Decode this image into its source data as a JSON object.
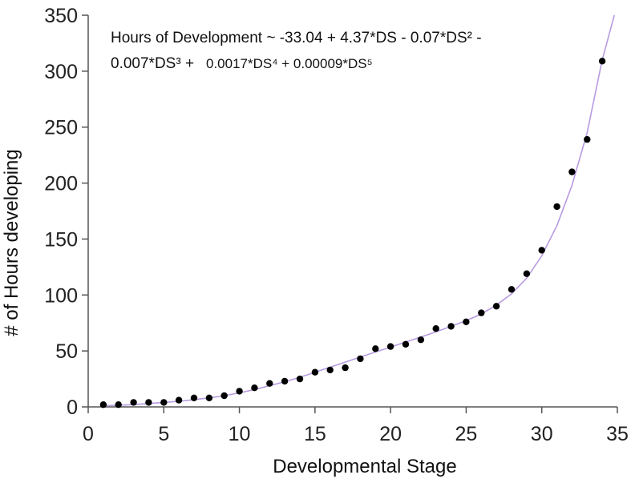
{
  "chart_data": {
    "type": "scatter",
    "xlabel": "Developmental Stage",
    "ylabel": "# of Hours developing",
    "xlim": [
      0,
      35
    ],
    "ylim": [
      0,
      350
    ],
    "x_ticks": [
      0,
      5,
      10,
      15,
      20,
      25,
      30,
      35
    ],
    "y_ticks": [
      0,
      50,
      100,
      150,
      200,
      250,
      300,
      350
    ],
    "grid": false,
    "colors": {
      "points": "#000000",
      "fit_line": "#b79be0",
      "axes": "#555555"
    },
    "equation": {
      "line1": "Hours of Development ~ -33.04 + 4.37*DS - 0.07*DS² -",
      "line2_a": "0.007*DS³ +",
      "line2_b": "0.0017*DS⁴ + 0.00009*DS⁵"
    },
    "series": [
      {
        "x": [
          1,
          2,
          3,
          4,
          5,
          6,
          7,
          8,
          9,
          10,
          11,
          12,
          13,
          14,
          15,
          16,
          17,
          18,
          19,
          20,
          21,
          22,
          23,
          24,
          25,
          26,
          27,
          28,
          29,
          30,
          31,
          32,
          33,
          34
        ],
        "y": [
          2,
          2,
          4,
          4,
          4,
          6,
          8,
          8,
          10,
          14,
          17,
          21,
          23,
          25,
          31,
          33,
          35,
          43,
          52,
          54,
          56,
          60,
          70,
          72,
          76,
          84,
          90,
          105,
          119,
          140,
          179,
          210,
          239,
          309
        ]
      }
    ],
    "fit_curve": {
      "x": [
        1,
        2,
        3,
        4,
        5,
        6,
        7,
        8,
        9,
        10,
        11,
        12,
        13,
        14,
        15,
        16,
        17,
        18,
        19,
        20,
        21,
        22,
        23,
        24,
        25,
        26,
        27,
        28,
        29,
        30,
        31,
        32,
        33,
        34,
        34.8
      ],
      "y": [
        1,
        1.5,
        2,
        3,
        4,
        5,
        6.5,
        8,
        10,
        12.5,
        15.5,
        19,
        22.5,
        26.5,
        31,
        35.5,
        40,
        44.5,
        49,
        53.5,
        58,
        62.5,
        67,
        72,
        77,
        83,
        91,
        101,
        115,
        135,
        162,
        198,
        245,
        310,
        350
      ]
    }
  }
}
